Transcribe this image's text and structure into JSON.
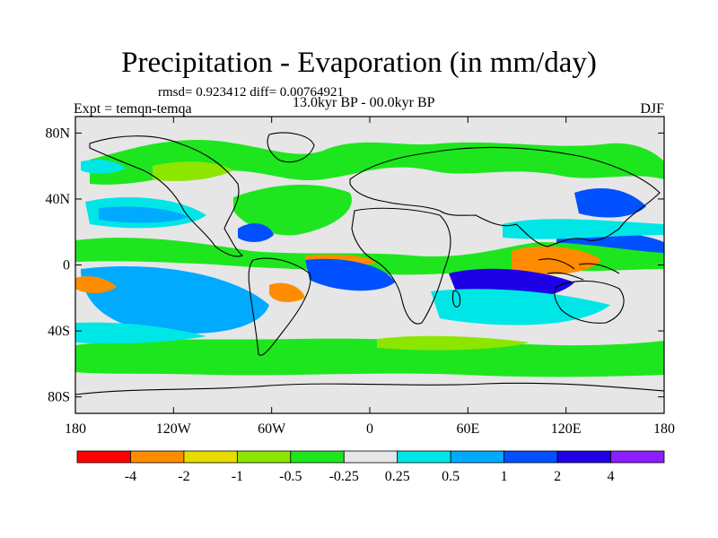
{
  "title": "Precipitation - Evaporation (in mm/day)",
  "stats_line": "rmsd= 0.923412 diff= 0.00764921",
  "period": "13.0kyr BP - 00.0kyr BP",
  "experiment": "Expt = temqn-temqa",
  "season": "DJF",
  "lat_ticks": [
    "80N",
    "40N",
    "0",
    "40S",
    "80S"
  ],
  "lon_ticks": [
    "180",
    "120W",
    "60W",
    "0",
    "60E",
    "120E",
    "180"
  ],
  "legend": {
    "labels": [
      "-4",
      "-2",
      "-1",
      "-0.5",
      "-0.25",
      "0.25",
      "0.5",
      "1",
      "2",
      "4"
    ],
    "colors": [
      "#ff0000",
      "#ff8c00",
      "#e6dc00",
      "#8ce600",
      "#1ee61e",
      "#e6e6e6",
      "#00e6e6",
      "#00aaff",
      "#0050ff",
      "#1e00e6",
      "#8c1eff"
    ]
  },
  "colors": {
    "ocean_background": "#e6e6e6",
    "coastline": "#000000"
  }
}
